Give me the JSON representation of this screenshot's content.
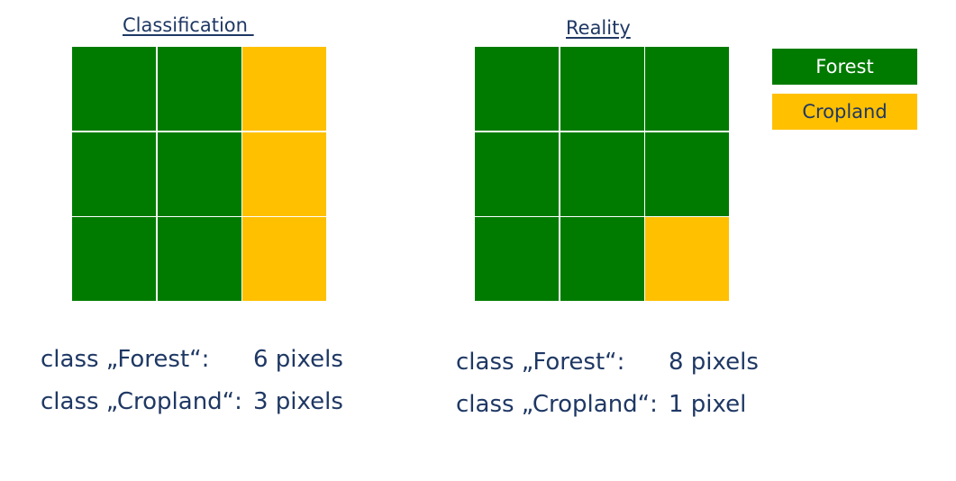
{
  "classification": {
    "title": "Classification ",
    "cells": [
      "Forest",
      "Forest",
      "Cropland",
      "Forest",
      "Forest",
      "Cropland",
      "Forest",
      "Forest",
      "Cropland"
    ],
    "counts": [
      {
        "label": "class „Forest“:",
        "value": "6 pixels"
      },
      {
        "label": "class „Cropland“:",
        "value": "3 pixels"
      }
    ]
  },
  "reality": {
    "title": "Reality",
    "cells": [
      "Forest",
      "Forest",
      "Forest",
      "Forest",
      "Forest",
      "Forest",
      "Forest",
      "Forest",
      "Cropland"
    ],
    "counts": [
      {
        "label": "class „Forest“:",
        "value": "8 pixels"
      },
      {
        "label": "class „Cropland“:",
        "value": "1 pixel"
      }
    ]
  },
  "legend": [
    {
      "label": "Forest",
      "color": "#007b00"
    },
    {
      "label": "Cropland",
      "color": "#ffc000"
    }
  ]
}
